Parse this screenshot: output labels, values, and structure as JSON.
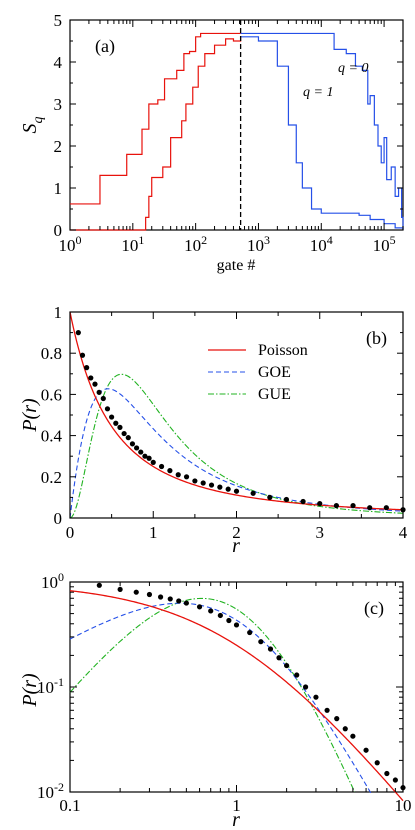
{
  "colors": {
    "red": "#e8120c",
    "blue": "#2550e8",
    "green": "#22b322",
    "black": "#000000"
  },
  "chart_data": [
    {
      "id": "a",
      "type": "line",
      "panel_label": "(a)",
      "xlabel": "gate #",
      "ylabel_main": "S",
      "ylabel_sub": "q",
      "xscale": "log",
      "xlim": [
        1,
        200000
      ],
      "ylim": [
        0,
        5
      ],
      "x_ticks": [
        {
          "base": "10",
          "exp": "0"
        },
        {
          "base": "10",
          "exp": "1"
        },
        {
          "base": "10",
          "exp": "2"
        },
        {
          "base": "10",
          "exp": "3"
        },
        {
          "base": "10",
          "exp": "4"
        },
        {
          "base": "10",
          "exp": "5"
        }
      ],
      "y_ticks": [
        "0",
        "1",
        "2",
        "3",
        "4",
        "5"
      ],
      "vline_x": 520,
      "annotations": [
        "q = 0",
        "q = 1"
      ],
      "series": [
        {
          "id": "q0_red",
          "color_key": "red",
          "points": [
            [
              1,
              0.62
            ],
            [
              3,
              0.62
            ],
            [
              3,
              1.3
            ],
            [
              5,
              1.3
            ],
            [
              8,
              1.8
            ],
            [
              14,
              2.4
            ],
            [
              16,
              2.4
            ],
            [
              18,
              3.0
            ],
            [
              25,
              3.1
            ],
            [
              32,
              3.6
            ],
            [
              40,
              3.6
            ],
            [
              50,
              3.8
            ],
            [
              65,
              4.2
            ],
            [
              80,
              4.25
            ],
            [
              100,
              4.6
            ],
            [
              120,
              4.68
            ],
            [
              520,
              4.68
            ]
          ]
        },
        {
          "id": "q1_red",
          "color_key": "red",
          "points": [
            [
              1,
              0
            ],
            [
              14,
              0
            ],
            [
              16,
              0.3
            ],
            [
              18,
              0.8
            ],
            [
              20,
              1.25
            ],
            [
              30,
              1.5
            ],
            [
              40,
              2.2
            ],
            [
              50,
              2.2
            ],
            [
              60,
              2.6
            ],
            [
              70,
              3.0
            ],
            [
              90,
              3.4
            ],
            [
              110,
              3.9
            ],
            [
              140,
              4.2
            ],
            [
              200,
              4.4
            ],
            [
              300,
              4.55
            ],
            [
              400,
              4.5
            ],
            [
              520,
              4.58
            ]
          ]
        },
        {
          "id": "q0_blue",
          "color_key": "blue",
          "points": [
            [
              520,
              4.68
            ],
            [
              13000,
              4.68
            ],
            [
              16000,
              4.3
            ],
            [
              25000,
              4.2
            ],
            [
              35000,
              3.9
            ],
            [
              45000,
              3.8
            ],
            [
              55000,
              3.0
            ],
            [
              60000,
              3.2
            ],
            [
              70000,
              2.5
            ],
            [
              80000,
              2.0
            ],
            [
              90000,
              1.6
            ],
            [
              100000,
              2.2
            ],
            [
              110000,
              1.2
            ],
            [
              130000,
              1.5
            ],
            [
              150000,
              0.8
            ],
            [
              170000,
              1.0
            ],
            [
              190000,
              0.3
            ],
            [
              200000,
              0
            ]
          ]
        },
        {
          "id": "q1_blue",
          "color_key": "blue",
          "points": [
            [
              520,
              4.6
            ],
            [
              1000,
              4.5
            ],
            [
              2000,
              3.9
            ],
            [
              3000,
              2.5
            ],
            [
              4000,
              1.6
            ],
            [
              5000,
              1.0
            ],
            [
              7000,
              0.5
            ],
            [
              10000,
              0.4
            ],
            [
              20000,
              0.4
            ],
            [
              40000,
              0.35
            ],
            [
              60000,
              0.25
            ],
            [
              100000,
              0.15
            ],
            [
              150000,
              0.05
            ],
            [
              200000,
              0
            ]
          ]
        }
      ]
    },
    {
      "id": "b",
      "type": "line",
      "panel_label": "(b)",
      "xlabel": "r",
      "ylabel": "P(r)",
      "xlim": [
        0,
        4
      ],
      "ylim": [
        0,
        1
      ],
      "x_ticks": [
        "0",
        "1",
        "2",
        "3",
        "4"
      ],
      "y_ticks": [
        "0",
        "0.2",
        "0.4",
        "0.6",
        "0.8",
        "1"
      ],
      "legend": [
        {
          "label": "Poisson",
          "color_key": "red",
          "style": "solid"
        },
        {
          "label": "GOE",
          "color_key": "blue",
          "style": "dashed"
        },
        {
          "label": "GUE",
          "color_key": "green",
          "style": "dashdot"
        }
      ],
      "data_points": [
        [
          0.1,
          0.9
        ],
        [
          0.15,
          0.79
        ],
        [
          0.2,
          0.73
        ],
        [
          0.25,
          0.68
        ],
        [
          0.3,
          0.65
        ],
        [
          0.35,
          0.61
        ],
        [
          0.4,
          0.58
        ],
        [
          0.45,
          0.53
        ],
        [
          0.5,
          0.49
        ],
        [
          0.55,
          0.46
        ],
        [
          0.6,
          0.44
        ],
        [
          0.65,
          0.41
        ],
        [
          0.7,
          0.39
        ],
        [
          0.75,
          0.36
        ],
        [
          0.8,
          0.34
        ],
        [
          0.85,
          0.32
        ],
        [
          0.9,
          0.3
        ],
        [
          0.95,
          0.29
        ],
        [
          1.0,
          0.27
        ],
        [
          1.1,
          0.25
        ],
        [
          1.2,
          0.23
        ],
        [
          1.3,
          0.21
        ],
        [
          1.4,
          0.2
        ],
        [
          1.5,
          0.18
        ],
        [
          1.6,
          0.17
        ],
        [
          1.7,
          0.16
        ],
        [
          1.8,
          0.15
        ],
        [
          1.9,
          0.14
        ],
        [
          2.0,
          0.13
        ],
        [
          2.2,
          0.12
        ],
        [
          2.4,
          0.1
        ],
        [
          2.6,
          0.09
        ],
        [
          2.8,
          0.08
        ],
        [
          3.0,
          0.07
        ],
        [
          3.2,
          0.06
        ],
        [
          3.4,
          0.06
        ],
        [
          3.6,
          0.05
        ],
        [
          3.8,
          0.05
        ],
        [
          4.0,
          0.04
        ]
      ]
    },
    {
      "id": "c",
      "type": "line",
      "panel_label": "(c)",
      "xlabel": "r",
      "ylabel": "P(r)",
      "xscale": "log",
      "yscale": "log",
      "xlim": [
        0.1,
        10
      ],
      "ylim": [
        0.01,
        1
      ],
      "x_ticks": [
        "0.1",
        "1",
        "10"
      ],
      "y_ticks": [
        {
          "base": "10",
          "exp": "-2"
        },
        {
          "base": "10",
          "exp": "-1"
        },
        {
          "base": "10",
          "exp": "0"
        }
      ],
      "data_points": [
        [
          0.15,
          0.93
        ],
        [
          0.2,
          0.85
        ],
        [
          0.25,
          0.8
        ],
        [
          0.3,
          0.76
        ],
        [
          0.35,
          0.72
        ],
        [
          0.4,
          0.69
        ],
        [
          0.45,
          0.66
        ],
        [
          0.5,
          0.63
        ],
        [
          0.6,
          0.58
        ],
        [
          0.7,
          0.53
        ],
        [
          0.8,
          0.48
        ],
        [
          0.9,
          0.43
        ],
        [
          1.0,
          0.39
        ],
        [
          1.2,
          0.33
        ],
        [
          1.4,
          0.27
        ],
        [
          1.6,
          0.23
        ],
        [
          1.8,
          0.19
        ],
        [
          2.0,
          0.16
        ],
        [
          2.3,
          0.13
        ],
        [
          2.6,
          0.1
        ],
        [
          3.0,
          0.08
        ],
        [
          3.5,
          0.06
        ],
        [
          4.0,
          0.05
        ],
        [
          4.5,
          0.04
        ],
        [
          5.0,
          0.034
        ],
        [
          6.0,
          0.025
        ],
        [
          7.0,
          0.019
        ],
        [
          8.0,
          0.015
        ],
        [
          9.0,
          0.013
        ],
        [
          10.0,
          0.011
        ]
      ]
    }
  ]
}
